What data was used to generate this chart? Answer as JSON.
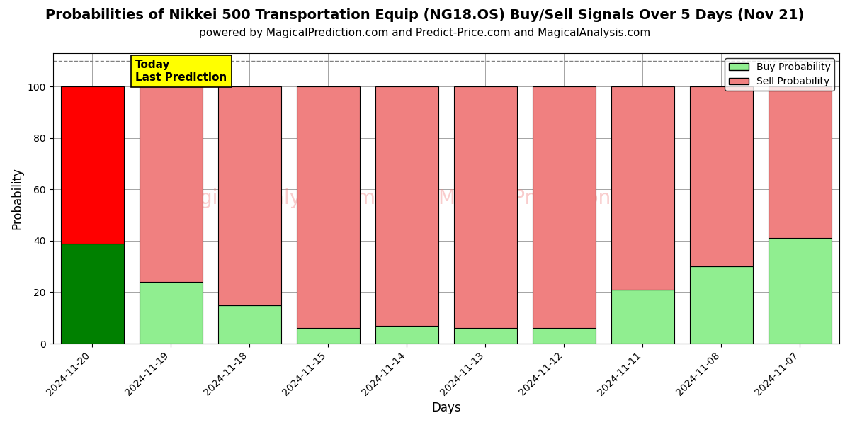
{
  "title": "Probabilities of Nikkei 500 Transportation Equip (NG18.OS) Buy/Sell Signals Over 5 Days (Nov 21)",
  "subtitle": "powered by MagicalPrediction.com and Predict-Price.com and MagicalAnalysis.com",
  "xlabel": "Days",
  "ylabel": "Probability",
  "categories": [
    "2024-11-20",
    "2024-11-19",
    "2024-11-18",
    "2024-11-15",
    "2024-11-14",
    "2024-11-13",
    "2024-11-12",
    "2024-11-11",
    "2024-11-08",
    "2024-11-07"
  ],
  "buy_values": [
    39,
    24,
    15,
    6,
    7,
    6,
    6,
    21,
    30,
    41
  ],
  "sell_values": [
    61,
    76,
    85,
    94,
    93,
    94,
    94,
    79,
    70,
    59
  ],
  "buy_color_today": "#008000",
  "sell_color_today": "#FF0000",
  "buy_color_other": "#90EE90",
  "sell_color_other": "#F08080",
  "bar_edgecolor": "#000000",
  "background_color": "#ffffff",
  "ylim": [
    0,
    113
  ],
  "yticks": [
    0,
    20,
    40,
    60,
    80,
    100
  ],
  "dashed_line_y": 110,
  "today_label": "Today\nLast Prediction",
  "today_label_bg": "#FFFF00",
  "legend_buy_label": "Buy Probability",
  "legend_sell_label": "Sell Probability",
  "title_fontsize": 14,
  "subtitle_fontsize": 11,
  "axis_label_fontsize": 12,
  "tick_fontsize": 10,
  "bar_width": 0.8
}
